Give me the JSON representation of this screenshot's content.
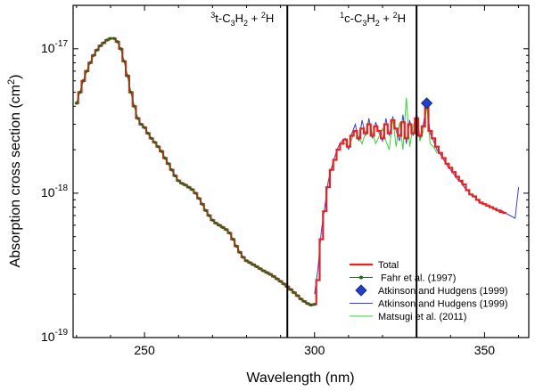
{
  "chart_data": {
    "type": "line",
    "xlabel": "Wavelength (nm)",
    "ylabel": "Absorption cross section (cm²)",
    "xlim": [
      229,
      363
    ],
    "ylim": [
      1e-19,
      2e-17
    ],
    "yscale": "log",
    "x_ticks": [
      250,
      300,
      350
    ],
    "y_ticks": [
      {
        "value": 1e-19,
        "mantissa": "10",
        "exp": "-19"
      },
      {
        "value": 1e-18,
        "mantissa": "10",
        "exp": "-18"
      },
      {
        "value": 1e-17,
        "mantissa": "10",
        "exp": "-17"
      }
    ],
    "vlines": [
      {
        "x": 292,
        "label_pre_sup": "3",
        "label_main": "t-C",
        "sub1": "3",
        "mid": "H",
        "sub2": "2",
        "plus": " + ",
        "sup2": "2",
        "tail": "H"
      },
      {
        "x": 330,
        "label_pre_sup": "1",
        "label_main": "c-C",
        "sub1": "3",
        "mid": "H",
        "sub2": "2",
        "plus": " + ",
        "sup2": "2",
        "tail": "H"
      }
    ],
    "legend_position": "bottom-right",
    "series": [
      {
        "name": "Total",
        "color": "#e8231f",
        "style": "step",
        "x": [
          230,
          231,
          232,
          233,
          234,
          235,
          236,
          237,
          238,
          239,
          240,
          241,
          242,
          243,
          244,
          245,
          246,
          247,
          248,
          249,
          250,
          251,
          252,
          253,
          254,
          255,
          256,
          257,
          258,
          259,
          260,
          261,
          262,
          263,
          264,
          265,
          266,
          267,
          268,
          269,
          270,
          271,
          272,
          273,
          274,
          275,
          276,
          277,
          278,
          279,
          280,
          281,
          282,
          283,
          284,
          285,
          286,
          287,
          288,
          289,
          290,
          291,
          292,
          293,
          294,
          295,
          296,
          297,
          298,
          299,
          300,
          301,
          302,
          303,
          304,
          305,
          306,
          307,
          308,
          309,
          310,
          311,
          312,
          313,
          314,
          315,
          316,
          317,
          318,
          319,
          320,
          321,
          322,
          323,
          324,
          325,
          326,
          327,
          328,
          329,
          330,
          331,
          332,
          333,
          334,
          335,
          336,
          337,
          338,
          339,
          340,
          341,
          342,
          343,
          344,
          345,
          346,
          347,
          348,
          349,
          350,
          351,
          352,
          353,
          354,
          355,
          356
        ],
        "y": [
          4.2e-18,
          5e-18,
          6e-18,
          7e-18,
          8e-18,
          9e-18,
          9.8e-18,
          1.05e-17,
          1.1e-17,
          1.15e-17,
          1.18e-17,
          1.18e-17,
          1.12e-17,
          1e-17,
          8.2e-18,
          6.5e-18,
          5e-18,
          4e-18,
          3.3e-18,
          3e-18,
          2.85e-18,
          2.6e-18,
          2.4e-18,
          2.25e-18,
          2.1e-18,
          1.95e-18,
          1.75e-18,
          1.6e-18,
          1.45e-18,
          1.32e-18,
          1.22e-18,
          1.17e-18,
          1.14e-18,
          1.1e-18,
          1.06e-18,
          1e-18,
          9.2e-19,
          8.4e-19,
          7.6e-19,
          7e-19,
          6.5e-19,
          6.2e-19,
          6e-19,
          5.8e-19,
          5.6e-19,
          5.3e-19,
          4.8e-19,
          4.3e-19,
          3.9e-19,
          3.6e-19,
          3.4e-19,
          3.3e-19,
          3.2e-19,
          3.1e-19,
          3e-19,
          2.9e-19,
          2.82e-19,
          2.74e-19,
          2.65e-19,
          2.55e-19,
          2.45e-19,
          2.35e-19,
          2.25e-19,
          2.15e-19,
          2.05e-19,
          1.95e-19,
          1.85e-19,
          1.78e-19,
          1.72e-19,
          1.68e-19,
          1.7e-19,
          2.5e-19,
          4.8e-19,
          7.5e-19,
          1.1e-18,
          1.45e-18,
          1.7e-18,
          2e-18,
          2.2e-18,
          2.35e-18,
          2.1e-18,
          2.5e-18,
          2.7e-18,
          2.4e-18,
          2.8e-18,
          2.6e-18,
          3e-18,
          2.5e-18,
          2.9e-18,
          2.7e-18,
          2.4e-18,
          3e-18,
          2.6e-18,
          3.2e-18,
          2.8e-18,
          2.5e-18,
          3.1e-18,
          2.4e-18,
          3e-18,
          2.6e-18,
          3.3e-18,
          2.5e-18,
          2.9e-18,
          4e-18,
          2.7e-18,
          2.4e-18,
          2.1e-18,
          1.9e-18,
          1.75e-18,
          1.6e-18,
          1.5e-18,
          1.4e-18,
          1.3e-18,
          1.22e-18,
          1.15e-18,
          1.05e-18,
          9.8e-19,
          9.5e-19,
          9e-19,
          8.6e-19,
          8.4e-19,
          8.2e-19,
          8e-19,
          7.8e-19,
          7.6e-19,
          7.4e-19,
          7.3e-19
        ]
      },
      {
        "name": "Fahr et al. (1997)",
        "color": "#1a6b1a",
        "style": "line-markers",
        "x_range": [
          230,
          300
        ],
        "note_source": "Total"
      },
      {
        "name": "Atkinson and Hudgens (1999)",
        "color": "#1f3fcc",
        "style": "diamond",
        "x": [
          333
        ],
        "y": [
          4.2e-18
        ]
      },
      {
        "name": "Atkinson and Hudgens (1999)",
        "color": "#3a3ae0",
        "style": "line",
        "x": [
          300,
          301,
          302,
          303,
          304,
          305,
          306,
          307,
          308,
          309,
          310,
          311,
          312,
          313,
          314,
          315,
          316,
          317,
          318,
          319,
          320,
          321,
          322,
          323,
          324,
          325,
          326,
          327,
          328,
          329,
          330,
          331,
          332,
          333,
          334,
          335,
          336,
          337,
          338,
          339,
          340,
          341,
          342,
          343,
          344,
          345,
          346,
          347,
          348,
          349,
          350,
          351,
          352,
          353,
          354,
          355,
          356,
          357,
          358,
          359,
          360
        ],
        "y": [
          2e-19,
          3e-19,
          5.5e-19,
          8e-19,
          1.2e-18,
          1.5e-18,
          1.8e-18,
          2.1e-18,
          2.3e-18,
          2.4e-18,
          2e-18,
          2.6e-18,
          3e-18,
          2.3e-18,
          3.2e-18,
          2.5e-18,
          3.3e-18,
          2.4e-18,
          3.1e-18,
          2.6e-18,
          2.3e-18,
          3.3e-18,
          2.5e-18,
          3.4e-18,
          2.7e-18,
          2.3e-18,
          3.5e-18,
          2.2e-18,
          3.2e-18,
          2.5e-18,
          3.6e-18,
          2.4e-18,
          3e-18,
          4.2e-18,
          2.6e-18,
          2.3e-18,
          2e-18,
          1.85e-18,
          1.7e-18,
          1.55e-18,
          1.45e-18,
          1.35e-18,
          1.25e-18,
          1.2e-18,
          1.1e-18,
          1.05e-18,
          9.7e-19,
          9.5e-19,
          8.9e-19,
          8.5e-19,
          8.4e-19,
          8.1e-19,
          8e-19,
          7.7e-19,
          7.5e-19,
          7.6e-19,
          7.3e-19,
          7.1e-19,
          6.9e-19,
          6.7e-19,
          1.1e-18
        ]
      },
      {
        "name": "Matsugi et al. (2011)",
        "color": "#35d435",
        "style": "line",
        "x": [
          308,
          310,
          312,
          314,
          316,
          318,
          320,
          321,
          322,
          323,
          324,
          325,
          326,
          327,
          328,
          329,
          330,
          331,
          332,
          333,
          334,
          335,
          336
        ],
        "y": [
          2.3e-18,
          2.1e-18,
          2.7e-18,
          2.2e-18,
          3.1e-18,
          2.2e-18,
          2.8e-18,
          2.3e-18,
          2e-18,
          3.3e-18,
          2.1e-18,
          3.1e-18,
          2e-18,
          4.6e-18,
          2.1e-18,
          2.9e-18,
          3.4e-18,
          2.3e-18,
          2.7e-18,
          4e-18,
          2.2e-18,
          2.1e-18,
          1.9e-18
        ]
      }
    ]
  }
}
